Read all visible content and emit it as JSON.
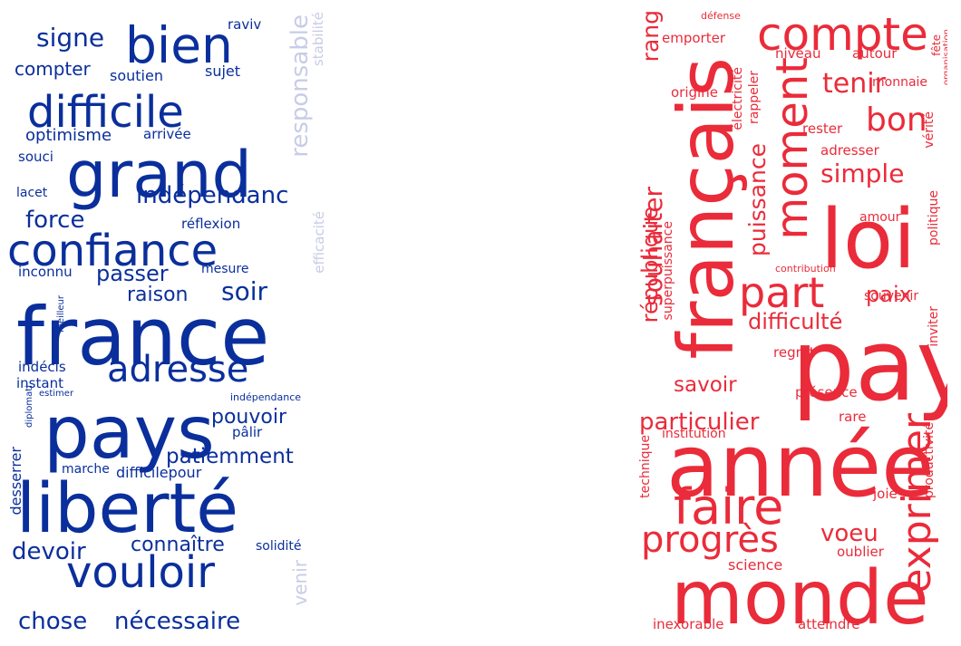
{
  "colors": {
    "blue": "#0a2f9c",
    "blue_light": "#c8cce6",
    "red": "#ea2b3a"
  },
  "left_cloud": {
    "words": [
      "france",
      "pays",
      "liberté",
      "grand",
      "confiance",
      "bien",
      "difficile",
      "vouloir",
      "adresse",
      "responsable",
      "chose",
      "nécessaire",
      "indépendanc",
      "signe",
      "force",
      "devoir",
      "patiemment",
      "soir",
      "passer",
      "raison",
      "pouvoir",
      "connaître",
      "compter",
      "optimisme",
      "stabilité",
      "efficacité",
      "venir",
      "soutien",
      "sujet",
      "raviv",
      "arrivée",
      "souci",
      "lacet",
      "réflexion",
      "inconnu",
      "mesure",
      "indécis",
      "instant",
      "pâlir",
      "marche",
      "difficilepour",
      "desserrer",
      "solidité",
      "estimer",
      "indépendance",
      "diplomati",
      "meilleur"
    ]
  },
  "right_cloud": {
    "words": [
      "pay",
      "année",
      "monde",
      "français",
      "loi",
      "compte",
      "faire",
      "moment",
      "part",
      "exprimer",
      "progrès",
      "souhaiter",
      "république",
      "particulier",
      "puissance",
      "bon",
      "tenir",
      "simple",
      "voeu",
      "rang",
      "savoir",
      "difficulté",
      "paix",
      "emporter",
      "niveau",
      "autour",
      "origine",
      "électricité",
      "rappeler",
      "rester",
      "monnaie",
      "adresser",
      "vérité",
      "amour",
      "superpuissance",
      "souvenir",
      "contribution",
      "politique",
      "inviter",
      "regret",
      "présence",
      "rare",
      "institution",
      "technique",
      "productivité",
      "joie",
      "oublier",
      "science",
      "inexorable",
      "atteindre",
      "défense",
      "fête",
      "organisation"
    ]
  }
}
